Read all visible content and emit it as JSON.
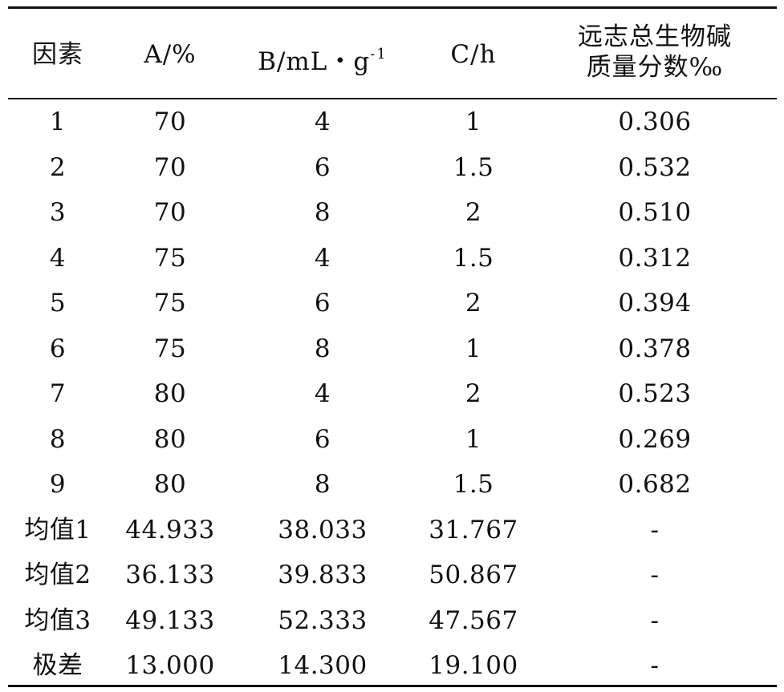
{
  "chart_data": {
    "type": "table",
    "columns": [
      {
        "label": "因素"
      },
      {
        "label": "A/%"
      },
      {
        "label": "B/mL・g",
        "sup": "-1"
      },
      {
        "label": "C/h"
      },
      {
        "lines": [
          "远志总生物碱",
          "质量分数‰"
        ]
      }
    ],
    "rows": [
      [
        "1",
        "70",
        "4",
        "1",
        "0.306"
      ],
      [
        "2",
        "70",
        "6",
        "1.5",
        "0.532"
      ],
      [
        "3",
        "70",
        "8",
        "2",
        "0.510"
      ],
      [
        "4",
        "75",
        "4",
        "1.5",
        "0.312"
      ],
      [
        "5",
        "75",
        "6",
        "2",
        "0.394"
      ],
      [
        "6",
        "75",
        "8",
        "1",
        "0.378"
      ],
      [
        "7",
        "80",
        "4",
        "2",
        "0.523"
      ],
      [
        "8",
        "80",
        "6",
        "1",
        "0.269"
      ],
      [
        "9",
        "80",
        "8",
        "1.5",
        "0.682"
      ],
      [
        "均值1",
        "44.933",
        "38.033",
        "31.767",
        "-"
      ],
      [
        "均值2",
        "36.133",
        "39.833",
        "50.867",
        "-"
      ],
      [
        "均值3",
        "49.133",
        "52.333",
        "47.567",
        "-"
      ],
      [
        "极差",
        "13.000",
        "14.300",
        "19.100",
        "-"
      ]
    ]
  }
}
